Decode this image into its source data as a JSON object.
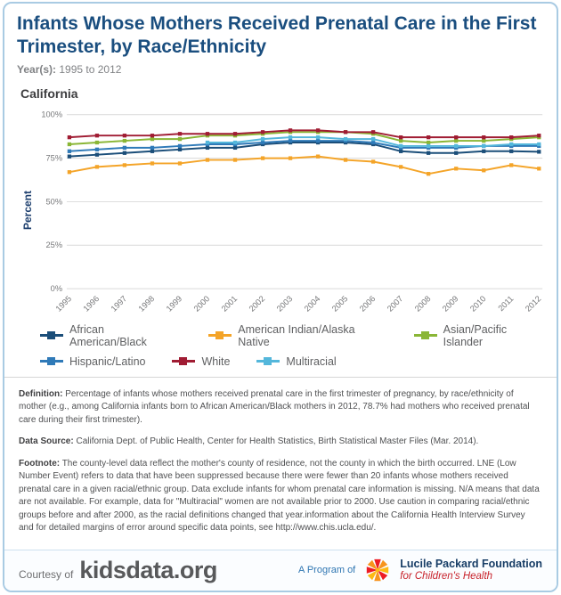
{
  "header": {
    "title": "Infants Whose Mothers Received Prenatal Care in the First Trimester, by Race/Ethnicity",
    "years_label": "Year(s):",
    "years_value": "1995 to 2012"
  },
  "chart": {
    "region_label": "California"
  },
  "chart_data": {
    "type": "line",
    "title": "Infants Whose Mothers Received Prenatal Care in the First Trimester, by Race/Ethnicity — California",
    "x": [
      1995,
      1996,
      1997,
      1998,
      1999,
      2000,
      2001,
      2002,
      2003,
      2004,
      2005,
      2006,
      2007,
      2008,
      2009,
      2010,
      2011,
      2012
    ],
    "xlabel": "",
    "ylabel": "Percent",
    "ylim": [
      0,
      100
    ],
    "yticks": [
      "0%",
      "25%",
      "50%",
      "75%",
      "100%"
    ],
    "grid": true,
    "legend_position": "bottom",
    "series": [
      {
        "name": "African American/Black",
        "color": "#1b4e79",
        "values": [
          76,
          77,
          78,
          79,
          80,
          81,
          81,
          83,
          84,
          84,
          84,
          83,
          79,
          78,
          78,
          79,
          79,
          78.7
        ]
      },
      {
        "name": "American Indian/Alaska Native",
        "color": "#f4a428",
        "values": [
          67,
          70,
          71,
          72,
          72,
          74,
          74,
          75,
          75,
          76,
          74,
          73,
          70,
          66,
          69,
          68,
          71,
          69
        ]
      },
      {
        "name": "Asian/Pacific Islander",
        "color": "#8ab636",
        "values": [
          83,
          84,
          85,
          86,
          86,
          88,
          88,
          89,
          90,
          90,
          90,
          89,
          85,
          84,
          85,
          85,
          86,
          87
        ]
      },
      {
        "name": "Hispanic/Latino",
        "color": "#2f7ab8",
        "values": [
          79,
          80,
          81,
          81,
          82,
          83,
          83,
          84,
          85,
          85,
          85,
          84,
          81,
          81,
          81,
          82,
          82,
          82
        ]
      },
      {
        "name": "White",
        "color": "#a01c33",
        "values": [
          87,
          88,
          88,
          88,
          89,
          89,
          89,
          90,
          91,
          91,
          90,
          90,
          87,
          87,
          87,
          87,
          87,
          88
        ]
      },
      {
        "name": "Multiracial",
        "color": "#54b7db",
        "values": [
          null,
          null,
          null,
          null,
          null,
          84,
          84,
          86,
          87,
          87,
          86,
          86,
          82,
          82,
          82,
          82,
          83,
          83
        ]
      }
    ]
  },
  "notes": {
    "definition_label": "Definition:",
    "definition_text": "Percentage of infants whose mothers received prenatal care in the first trimester of pregnancy, by race/ethnicity of mother (e.g., among California infants born to African American/Black mothers in 2012, 78.7% had mothers who received prenatal care during their first trimester).",
    "data_source_label": "Data Source:",
    "data_source_text": "California Dept. of Public Health, Center for Health Statistics, Birth Statistical Master Files (Mar. 2014).",
    "footnote_label": "Footnote:",
    "footnote_text": "The county-level data reflect the mother's county of residence, not the county in which the birth occurred. LNE (Low Number Event) refers to data that have been suppressed because there were fewer than 20 infants whose mothers received prenatal care in a given racial/ethnic group. Data exclude infants for whom prenatal care information is missing. N/A means that data are not available. For example, data for \"Multiracial\" women are not available prior to 2000. Use caution in comparing racial/ethnic groups before and after 2000, as the racial definitions changed that year.information about the California Health Interview Survey and for detailed margins of error around specific data points, see http://www.chis.ucla.edu/."
  },
  "footer": {
    "courtesy_label": "Courtesy of",
    "site_name": "kidsdata.org",
    "program_label": "A Program of",
    "foundation_name": "Lucile Packard Foundation",
    "foundation_tagline": "for Children's Health"
  }
}
